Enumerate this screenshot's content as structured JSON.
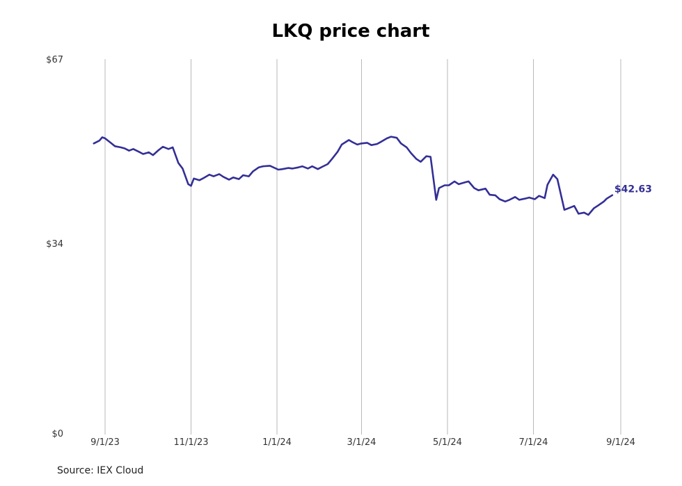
{
  "chart_data": {
    "type": "line",
    "title": "LKQ price chart",
    "source": "Source: IEX Cloud",
    "xlabel": "",
    "ylabel": "",
    "ylim": [
      0,
      67
    ],
    "y_ticks": [
      {
        "value": 0,
        "label": "$0"
      },
      {
        "value": 34,
        "label": "$34"
      },
      {
        "value": 67,
        "label": "$67"
      }
    ],
    "x_ticks": [
      {
        "date": "2023-09-01",
        "label": "9/1/23"
      },
      {
        "date": "2023-11-01",
        "label": "11/1/23"
      },
      {
        "date": "2024-01-01",
        "label": "1/1/24"
      },
      {
        "date": "2024-03-01",
        "label": "3/1/24"
      },
      {
        "date": "2024-05-01",
        "label": "5/1/24"
      },
      {
        "date": "2024-07-01",
        "label": "7/1/24"
      },
      {
        "date": "2024-09-01",
        "label": "9/1/24"
      }
    ],
    "grid": "vertical",
    "line_color": "#332f96",
    "end_label": "$42.63",
    "series": [
      {
        "name": "",
        "points": [
          [
            "2023-08-24",
            51.9
          ],
          [
            "2023-08-28",
            52.4
          ],
          [
            "2023-08-30",
            53.0
          ],
          [
            "2023-09-01",
            52.8
          ],
          [
            "2023-09-05",
            52.0
          ],
          [
            "2023-09-08",
            51.4
          ],
          [
            "2023-09-12",
            51.2
          ],
          [
            "2023-09-15",
            51.0
          ],
          [
            "2023-09-18",
            50.6
          ],
          [
            "2023-09-21",
            50.9
          ],
          [
            "2023-09-25",
            50.4
          ],
          [
            "2023-09-28",
            50.0
          ],
          [
            "2023-10-02",
            50.3
          ],
          [
            "2023-10-05",
            49.8
          ],
          [
            "2023-10-09",
            50.7
          ],
          [
            "2023-10-12",
            51.3
          ],
          [
            "2023-10-16",
            50.9
          ],
          [
            "2023-10-19",
            51.2
          ],
          [
            "2023-10-23",
            48.4
          ],
          [
            "2023-10-26",
            47.4
          ],
          [
            "2023-10-30",
            44.6
          ],
          [
            "2023-11-01",
            44.3
          ],
          [
            "2023-11-03",
            45.6
          ],
          [
            "2023-11-07",
            45.3
          ],
          [
            "2023-11-10",
            45.7
          ],
          [
            "2023-11-14",
            46.3
          ],
          [
            "2023-11-17",
            46.0
          ],
          [
            "2023-11-21",
            46.4
          ],
          [
            "2023-11-24",
            45.9
          ],
          [
            "2023-11-28",
            45.4
          ],
          [
            "2023-12-01",
            45.8
          ],
          [
            "2023-12-05",
            45.5
          ],
          [
            "2023-12-08",
            46.2
          ],
          [
            "2023-12-12",
            46.0
          ],
          [
            "2023-12-15",
            46.9
          ],
          [
            "2023-12-19",
            47.6
          ],
          [
            "2023-12-22",
            47.8
          ],
          [
            "2023-12-27",
            47.9
          ],
          [
            "2024-01-02",
            47.2
          ],
          [
            "2024-01-05",
            47.3
          ],
          [
            "2024-01-09",
            47.5
          ],
          [
            "2024-01-12",
            47.4
          ],
          [
            "2024-01-16",
            47.6
          ],
          [
            "2024-01-19",
            47.8
          ],
          [
            "2024-01-23",
            47.4
          ],
          [
            "2024-01-26",
            47.8
          ],
          [
            "2024-01-30",
            47.3
          ],
          [
            "2024-02-02",
            47.7
          ],
          [
            "2024-02-06",
            48.2
          ],
          [
            "2024-02-09",
            49.1
          ],
          [
            "2024-02-13",
            50.4
          ],
          [
            "2024-02-16",
            51.7
          ],
          [
            "2024-02-21",
            52.5
          ],
          [
            "2024-02-23",
            52.2
          ],
          [
            "2024-02-27",
            51.7
          ],
          [
            "2024-03-01",
            51.9
          ],
          [
            "2024-03-05",
            52.0
          ],
          [
            "2024-03-08",
            51.6
          ],
          [
            "2024-03-12",
            51.8
          ],
          [
            "2024-03-15",
            52.2
          ],
          [
            "2024-03-19",
            52.8
          ],
          [
            "2024-03-22",
            53.1
          ],
          [
            "2024-03-26",
            52.9
          ],
          [
            "2024-03-29",
            51.9
          ],
          [
            "2024-04-02",
            51.2
          ],
          [
            "2024-04-05",
            50.2
          ],
          [
            "2024-04-09",
            49.1
          ],
          [
            "2024-04-12",
            48.6
          ],
          [
            "2024-04-16",
            49.6
          ],
          [
            "2024-04-19",
            49.5
          ],
          [
            "2024-04-23",
            41.8
          ],
          [
            "2024-04-25",
            43.9
          ],
          [
            "2024-04-29",
            44.4
          ],
          [
            "2024-05-02",
            44.4
          ],
          [
            "2024-05-06",
            45.1
          ],
          [
            "2024-05-09",
            44.6
          ],
          [
            "2024-05-13",
            44.9
          ],
          [
            "2024-05-16",
            45.1
          ],
          [
            "2024-05-20",
            43.9
          ],
          [
            "2024-05-23",
            43.5
          ],
          [
            "2024-05-28",
            43.8
          ],
          [
            "2024-05-31",
            42.7
          ],
          [
            "2024-06-04",
            42.6
          ],
          [
            "2024-06-07",
            41.9
          ],
          [
            "2024-06-11",
            41.5
          ],
          [
            "2024-06-14",
            41.8
          ],
          [
            "2024-06-18",
            42.3
          ],
          [
            "2024-06-21",
            41.8
          ],
          [
            "2024-06-25",
            42.0
          ],
          [
            "2024-06-28",
            42.2
          ],
          [
            "2024-07-02",
            41.9
          ],
          [
            "2024-07-05",
            42.5
          ],
          [
            "2024-07-09",
            42.1
          ],
          [
            "2024-07-11",
            44.5
          ],
          [
            "2024-07-15",
            46.3
          ],
          [
            "2024-07-18",
            45.5
          ],
          [
            "2024-07-23",
            40.0
          ],
          [
            "2024-07-26",
            40.3
          ],
          [
            "2024-07-30",
            40.7
          ],
          [
            "2024-08-02",
            39.3
          ],
          [
            "2024-08-06",
            39.5
          ],
          [
            "2024-08-09",
            39.1
          ],
          [
            "2024-08-13",
            40.3
          ],
          [
            "2024-08-16",
            40.8
          ],
          [
            "2024-08-20",
            41.5
          ],
          [
            "2024-08-22",
            42.0
          ],
          [
            "2024-08-26",
            42.63
          ]
        ]
      }
    ]
  }
}
